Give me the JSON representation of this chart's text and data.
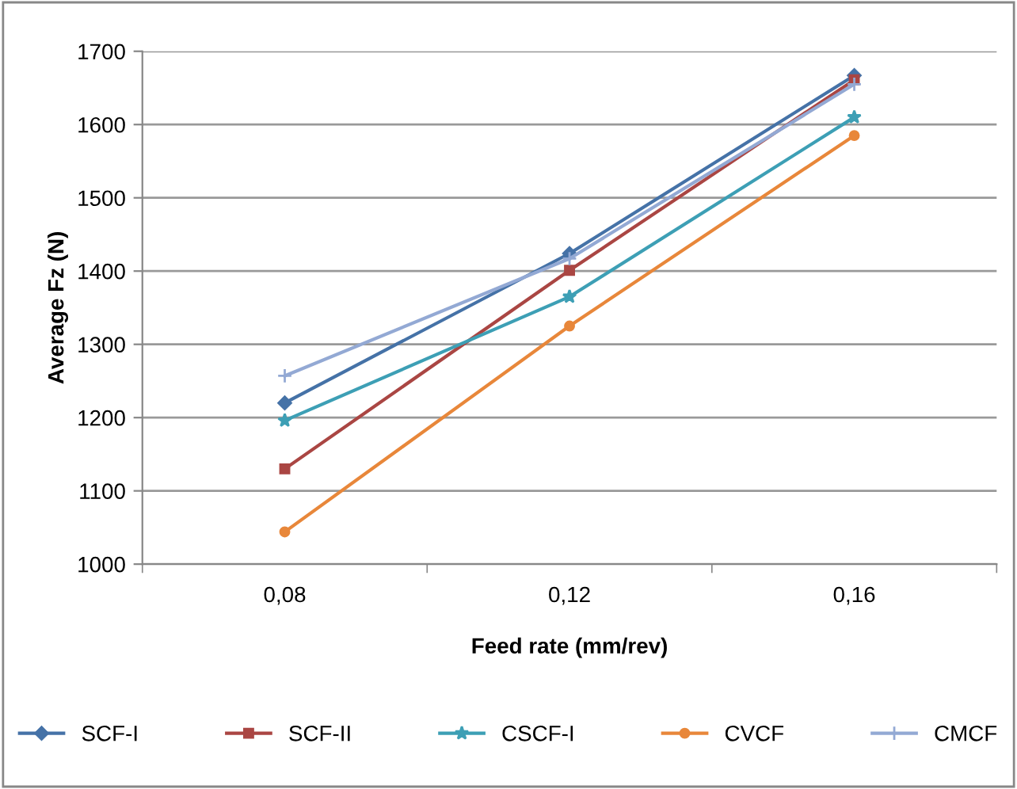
{
  "chart_data": {
    "type": "line",
    "xlabel": "Feed rate (mm/rev)",
    "ylabel": "Average Fz (N)",
    "categories": [
      "0,08",
      "0,12",
      "0,16"
    ],
    "series": [
      {
        "name": "SCF-I",
        "color": "#4572a7",
        "marker": "diamond",
        "values": [
          1220,
          1424,
          1667
        ]
      },
      {
        "name": "SCF-II",
        "color": "#aa4643",
        "marker": "square",
        "values": [
          1130,
          1401,
          1661
        ]
      },
      {
        "name": "CSCF-I",
        "color": "#3d9fb5",
        "marker": "star",
        "values": [
          1196,
          1365,
          1610
        ]
      },
      {
        "name": "CVCF",
        "color": "#e8873a",
        "marker": "circle",
        "values": [
          1044,
          1325,
          1585
        ]
      },
      {
        "name": "CMCF",
        "color": "#93a9d4",
        "marker": "cross",
        "values": [
          1257,
          1417,
          1655
        ]
      }
    ],
    "ylim": [
      1000,
      1700
    ],
    "yticks": [
      1000,
      1100,
      1200,
      1300,
      1400,
      1500,
      1600,
      1700
    ],
    "grid": "y",
    "legend": "bottom",
    "line_style": "solid"
  }
}
